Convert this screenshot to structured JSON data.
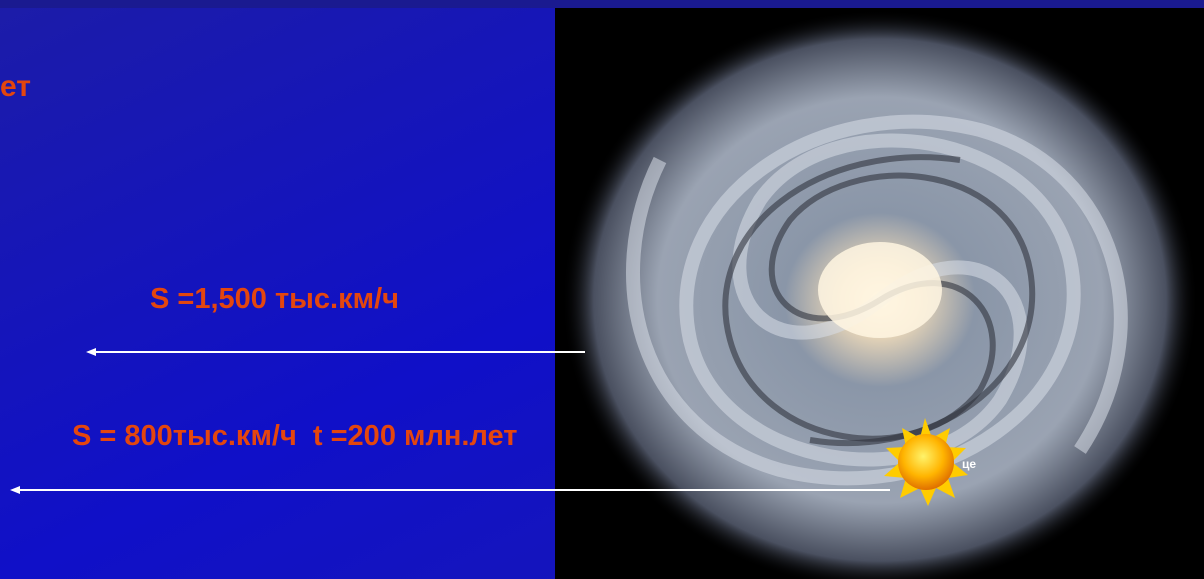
{
  "slide": {
    "title_fragment": "ет",
    "lines": [
      "S =1,500 тыс.км/ч",
      "S = 800тыс.км/ч  t =200 млн.лет"
    ],
    "sun_label": "це"
  }
}
